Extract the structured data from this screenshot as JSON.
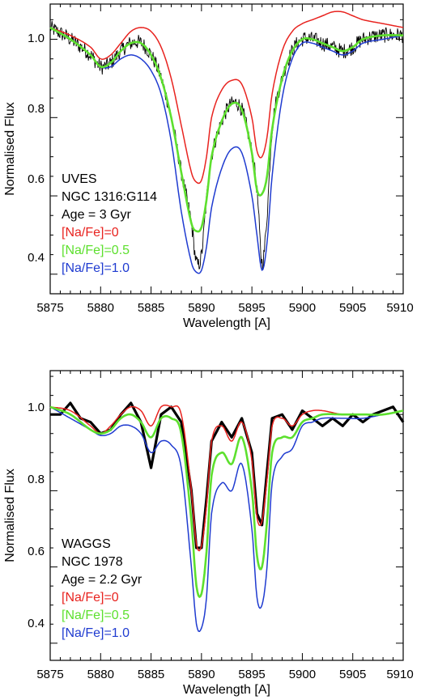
{
  "chart_data": [
    {
      "type": "line",
      "xlabel": "Wavelength [A]",
      "ylabel": "Normalised Flux",
      "xlim": [
        5875,
        5910
      ],
      "ylim": [
        0.35,
        1.09
      ],
      "xticks": [
        5875,
        5880,
        5885,
        5890,
        5895,
        5900,
        5905,
        5910
      ],
      "yticks": [
        0.4,
        0.6,
        0.8,
        1.0
      ],
      "x_tick_labels": [
        "5875",
        "5880",
        "5885",
        "5890",
        "5895",
        "5900",
        "5905",
        "5910"
      ],
      "y_tick_labels": [
        "0.4",
        "0.6",
        "0.8",
        "1.0"
      ],
      "legend_text": [
        "UVES",
        "NGC 1316:G114",
        "Age = 3 Gyr"
      ],
      "series": [
        {
          "name": "[Na/Fe]=0",
          "color": "#e8231f",
          "x": [
            5875,
            5877,
            5879,
            5880,
            5881,
            5882,
            5883,
            5884,
            5885,
            5886,
            5887,
            5888,
            5889,
            5889.5,
            5890,
            5890.5,
            5891,
            5892,
            5893,
            5894,
            5895,
            5895.5,
            5896,
            5896.5,
            5897,
            5898,
            5899,
            5900,
            5901,
            5902,
            5903,
            5904,
            5905,
            5906,
            5908,
            5910
          ],
          "y": [
            1.03,
            1.01,
            0.98,
            0.95,
            0.96,
            0.99,
            1.02,
            1.03,
            1.02,
            0.98,
            0.9,
            0.78,
            0.66,
            0.635,
            0.64,
            0.7,
            0.8,
            0.87,
            0.895,
            0.885,
            0.8,
            0.715,
            0.7,
            0.75,
            0.86,
            0.97,
            1.02,
            1.04,
            1.05,
            1.06,
            1.07,
            1.07,
            1.06,
            1.05,
            1.04,
            1.03
          ]
        },
        {
          "name": "[Na/Fe]=0.5",
          "color": "#5de02e",
          "x": [
            5875,
            5877,
            5879,
            5880,
            5881,
            5882,
            5883,
            5884,
            5885,
            5886,
            5887,
            5888,
            5889,
            5889.5,
            5890,
            5890.5,
            5891,
            5892,
            5893,
            5894,
            5895,
            5895.5,
            5896,
            5896.5,
            5897,
            5898,
            5899,
            5900,
            5901,
            5902,
            5903,
            5904,
            5905,
            5906,
            5908,
            5910
          ],
          "y": [
            1.03,
            1.0,
            0.96,
            0.93,
            0.94,
            0.97,
            0.99,
            0.99,
            0.96,
            0.9,
            0.8,
            0.66,
            0.53,
            0.51,
            0.52,
            0.59,
            0.7,
            0.79,
            0.835,
            0.82,
            0.71,
            0.615,
            0.605,
            0.65,
            0.77,
            0.9,
            0.97,
            1.0,
            1.0,
            0.99,
            0.98,
            0.97,
            0.98,
            1.0,
            1.01,
            1.01
          ]
        },
        {
          "name": "[Na/Fe]=1.0",
          "color": "#1f3bd0",
          "x": [
            5875,
            5877,
            5879,
            5880,
            5881,
            5882,
            5883,
            5884,
            5885,
            5886,
            5887,
            5888,
            5889,
            5889.5,
            5890,
            5890.5,
            5891,
            5892,
            5893,
            5894,
            5895,
            5895.5,
            5896,
            5896.5,
            5897,
            5898,
            5899,
            5900,
            5901,
            5902,
            5903,
            5904,
            5905,
            5906,
            5908,
            5910
          ],
          "y": [
            1.03,
            1.0,
            0.96,
            0.93,
            0.93,
            0.95,
            0.96,
            0.95,
            0.92,
            0.86,
            0.74,
            0.56,
            0.43,
            0.405,
            0.41,
            0.47,
            0.57,
            0.67,
            0.72,
            0.71,
            0.6,
            0.5,
            0.41,
            0.48,
            0.65,
            0.85,
            0.95,
            0.99,
            0.99,
            0.98,
            0.97,
            0.96,
            0.97,
            0.99,
            1.0,
            1.01
          ]
        }
      ],
      "observed": {
        "color": "#000000",
        "x": [
          5875,
          5877,
          5879,
          5880,
          5881,
          5882,
          5883,
          5884,
          5885,
          5886,
          5887,
          5888,
          5889,
          5889.5,
          5890,
          5890.5,
          5891,
          5892,
          5893,
          5894,
          5895,
          5895.5,
          5896,
          5896.5,
          5897,
          5898,
          5899,
          5900,
          5901,
          5902,
          5903,
          5904,
          5905,
          5906,
          5908,
          5910
        ],
        "y": [
          1.03,
          1.0,
          0.96,
          0.93,
          0.94,
          0.97,
          0.99,
          0.99,
          0.96,
          0.9,
          0.8,
          0.66,
          0.53,
          0.43,
          0.45,
          0.59,
          0.7,
          0.79,
          0.835,
          0.82,
          0.71,
          0.615,
          0.43,
          0.55,
          0.77,
          0.9,
          0.97,
          1.0,
          1.0,
          0.99,
          0.98,
          0.97,
          0.98,
          1.0,
          1.01,
          1.01
        ]
      }
    },
    {
      "type": "line",
      "xlabel": "Wavelength [A]",
      "ylabel": "Normalised Flux",
      "xlim": [
        5875,
        5910
      ],
      "ylim": [
        0.355,
        1.115
      ],
      "xticks": [
        5875,
        5880,
        5885,
        5890,
        5895,
        5900,
        5905,
        5910
      ],
      "yticks": [
        0.4,
        0.6,
        0.8,
        1.0
      ],
      "x_tick_labels": [
        "5875",
        "5880",
        "5885",
        "5890",
        "5895",
        "5900",
        "5905",
        "5910"
      ],
      "y_tick_labels": [
        "0.4",
        "0.6",
        "0.8",
        "1.0"
      ],
      "legend_text": [
        "WAGGS",
        "NGC 1978",
        "Age = 2.2 Gyr"
      ],
      "series": [
        {
          "name": "[Na/Fe]=0",
          "color": "#e8231f",
          "x": [
            5875,
            5877,
            5879,
            5880,
            5881,
            5882,
            5883,
            5884,
            5885,
            5886,
            5887,
            5888,
            5889,
            5889.5,
            5890,
            5890.5,
            5891,
            5892,
            5893,
            5894,
            5895,
            5895.5,
            5896,
            5896.5,
            5897,
            5898,
            5899,
            5900,
            5901,
            5902,
            5904,
            5906,
            5908,
            5910
          ],
          "y": [
            1.02,
            1.01,
            0.97,
            0.95,
            0.97,
            1.0,
            1.02,
            1.01,
            0.97,
            1.02,
            1.02,
            1.0,
            0.8,
            0.66,
            0.655,
            0.76,
            0.93,
            0.97,
            0.93,
            0.98,
            0.88,
            0.73,
            0.72,
            0.83,
            0.97,
            0.99,
            0.97,
            1.0,
            1.01,
            1.01,
            1.0,
            1.0,
            1.0,
            1.01
          ]
        },
        {
          "name": "[Na/Fe]=0.5",
          "color": "#5de02e",
          "x": [
            5875,
            5877,
            5879,
            5880,
            5881,
            5882,
            5883,
            5884,
            5885,
            5886,
            5887,
            5888,
            5889,
            5889.5,
            5890,
            5890.5,
            5891,
            5892,
            5893,
            5894,
            5895,
            5895.5,
            5896,
            5896.5,
            5897,
            5898,
            5899,
            5900,
            5901,
            5902,
            5904,
            5906,
            5908,
            5910
          ],
          "y": [
            1.02,
            1.0,
            0.96,
            0.95,
            0.96,
            0.99,
            1.0,
            0.98,
            0.94,
            0.99,
            0.99,
            0.95,
            0.72,
            0.55,
            0.53,
            0.64,
            0.84,
            0.9,
            0.87,
            0.94,
            0.8,
            0.63,
            0.6,
            0.72,
            0.9,
            0.94,
            0.94,
            0.98,
            0.99,
            1.0,
            1.0,
            1.0,
            1.0,
            1.01
          ]
        },
        {
          "name": "[Na/Fe]=1.0",
          "color": "#1f3bd0",
          "x": [
            5875,
            5877,
            5879,
            5880,
            5881,
            5882,
            5883,
            5884,
            5885,
            5886,
            5887,
            5888,
            5889,
            5889.5,
            5890,
            5890.5,
            5891,
            5892,
            5893,
            5894,
            5895,
            5895.5,
            5896,
            5896.5,
            5897,
            5898,
            5899,
            5900,
            5901,
            5902,
            5904,
            5906,
            5908,
            5910
          ],
          "y": [
            1.02,
            0.99,
            0.96,
            0.945,
            0.95,
            0.97,
            0.97,
            0.95,
            0.9,
            0.93,
            0.92,
            0.86,
            0.6,
            0.45,
            0.44,
            0.52,
            0.74,
            0.82,
            0.8,
            0.87,
            0.7,
            0.52,
            0.5,
            0.6,
            0.82,
            0.89,
            0.91,
            0.97,
            0.98,
            0.99,
            0.99,
            0.99,
            1.0,
            1.01
          ]
        }
      ],
      "observed": {
        "color": "#000000",
        "x": [
          5875,
          5876,
          5877,
          5878,
          5879,
          5880,
          5881,
          5882,
          5883,
          5884,
          5885,
          5886,
          5887,
          5888,
          5889,
          5889.5,
          5890,
          5890.5,
          5891,
          5892,
          5893,
          5894,
          5895,
          5895.5,
          5896,
          5896.5,
          5897,
          5898,
          5899,
          5900,
          5901,
          5902,
          5903,
          5904,
          5905,
          5906,
          5907,
          5908,
          5909,
          5910
        ],
        "y": [
          1.0,
          1.0,
          1.03,
          0.99,
          0.98,
          0.95,
          0.96,
          1.0,
          1.03,
          0.98,
          0.86,
          1.0,
          1.02,
          0.98,
          0.8,
          0.65,
          0.65,
          0.78,
          0.93,
          0.98,
          0.94,
          0.99,
          0.9,
          0.74,
          0.71,
          0.85,
          0.99,
          1.0,
          0.96,
          1.01,
          0.99,
          0.97,
          0.99,
          0.97,
          1.0,
          0.98,
          1.0,
          1.01,
          1.02,
          0.98
        ]
      }
    }
  ]
}
